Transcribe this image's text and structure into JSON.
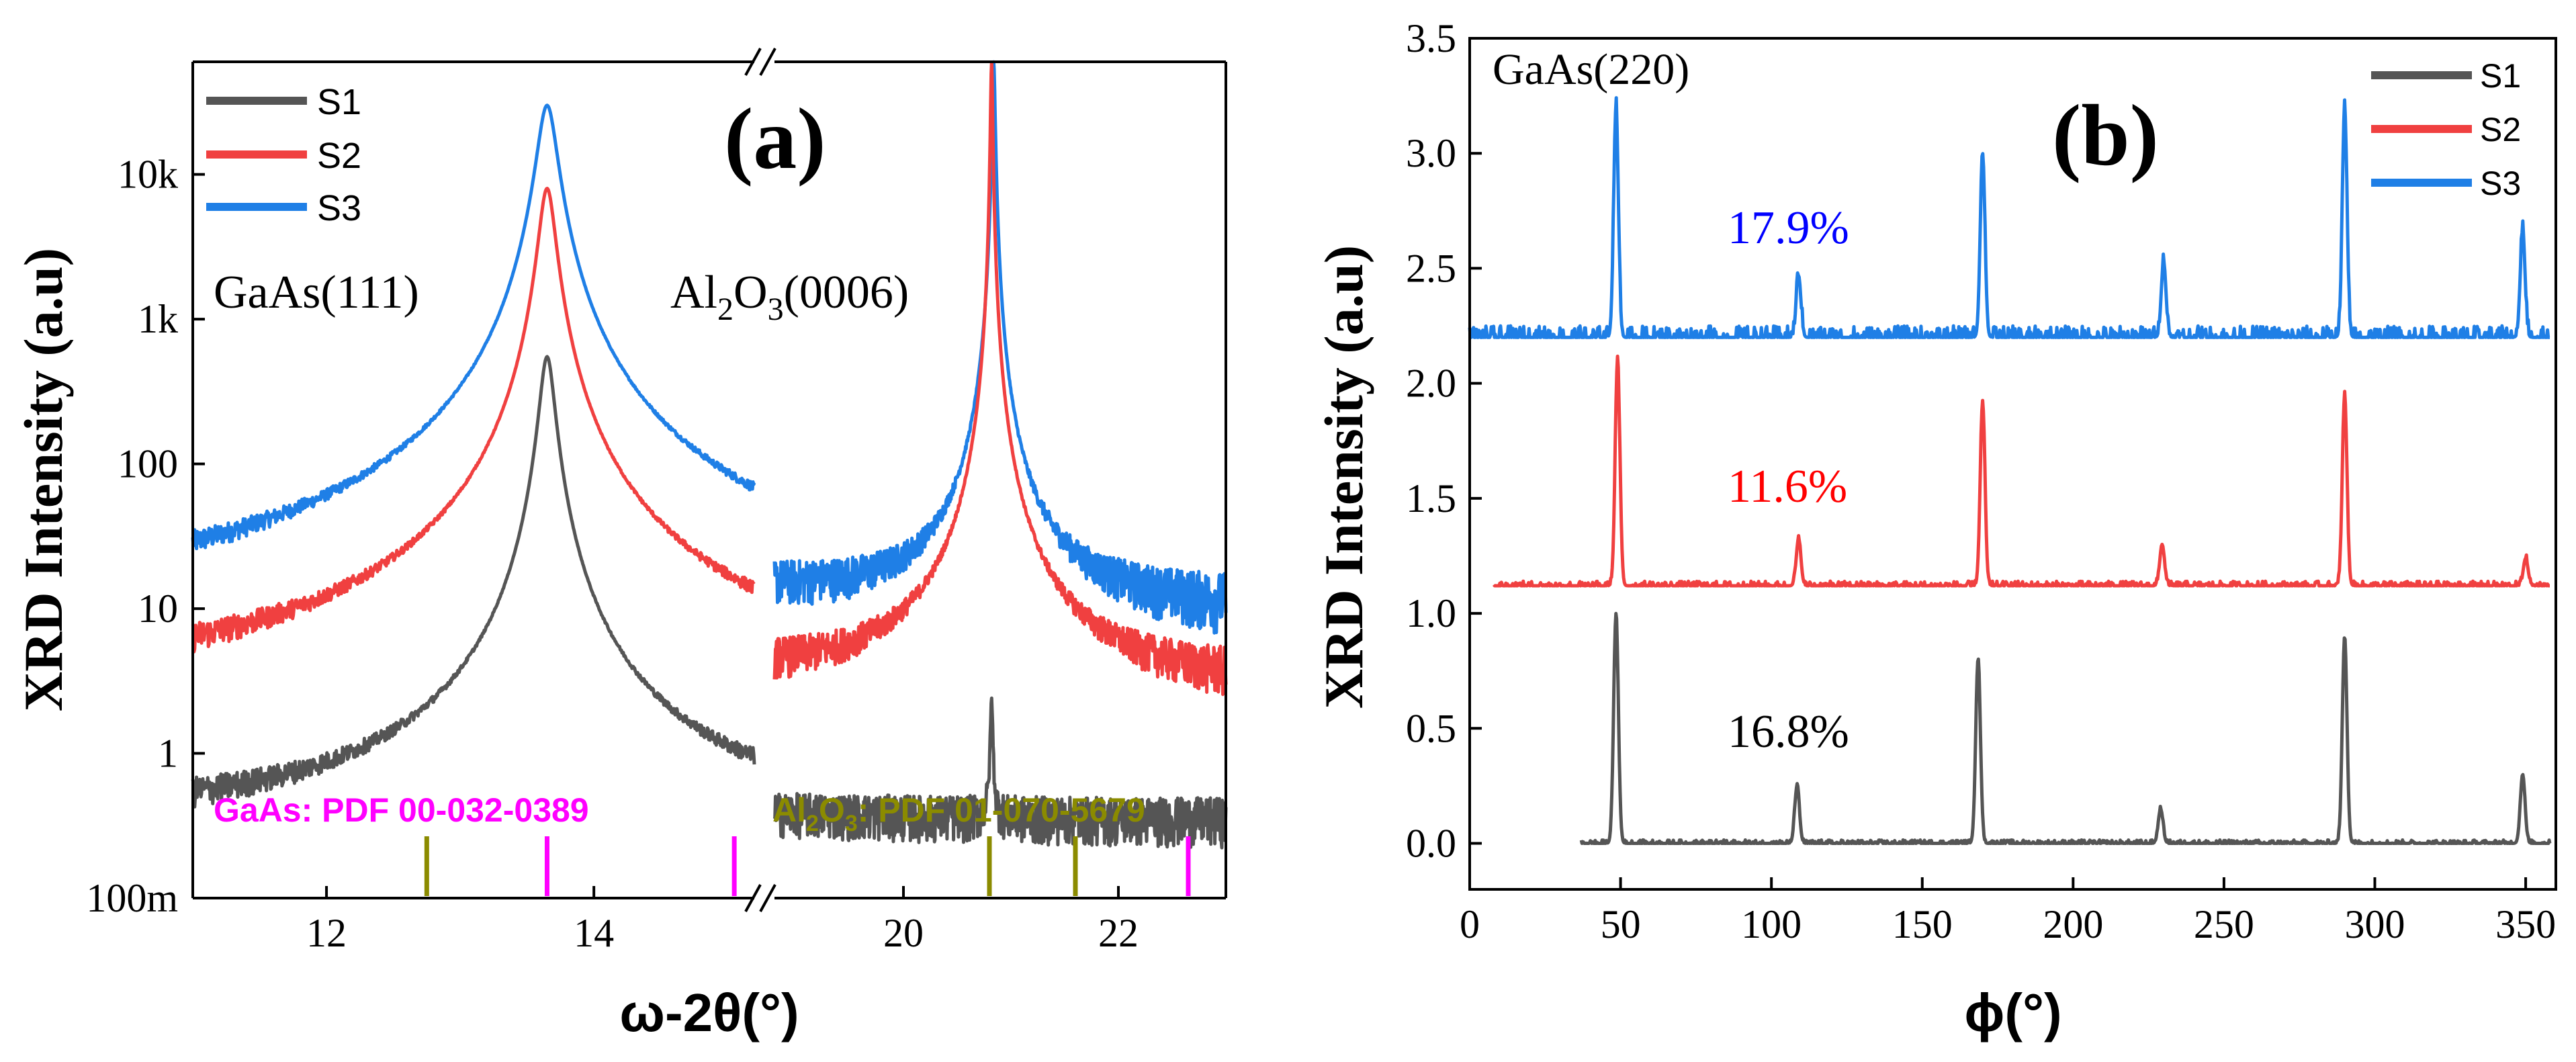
{
  "colors": {
    "S1": "#555555",
    "S2": "#f04040",
    "S3": "#1f7fe6",
    "gaas_ref": "#ff00ff",
    "al2o3_ref": "#8b8b00",
    "label_s1": "#000000",
    "label_s2": "#ff0000",
    "label_s3": "#0000ff"
  },
  "chart_data": [
    {
      "panel": "(a)",
      "type": "line",
      "ylabel": "XRD Intensity (a.u)",
      "xlabel": "ω-2θ(°)",
      "yscale": "log",
      "ylim": [
        0.1,
        60000
      ],
      "ytick_labels": [
        "100m",
        "1",
        "10",
        "100",
        "1k",
        "10k"
      ],
      "ytick_values": [
        0.1,
        1,
        10,
        100,
        1000,
        10000
      ],
      "x_segments": [
        {
          "xlim": [
            11.0,
            15.2
          ],
          "ticks": [
            12,
            14
          ]
        },
        {
          "xlim": [
            18.8,
            23.0
          ],
          "ticks": [
            20,
            22
          ]
        }
      ],
      "axis_break": true,
      "legend": [
        "S1",
        "S2",
        "S3"
      ],
      "legend_position": "top-left",
      "series": [
        {
          "name": "S1",
          "baseline": 0.3,
          "noise": 0.45,
          "peaks": [
            {
              "x": 13.65,
              "y": 550,
              "w": 0.09
            },
            {
              "x": 20.82,
              "y": 2.0,
              "w": 0.02
            }
          ]
        },
        {
          "name": "S2",
          "baseline": 2.2,
          "noise": 0.7,
          "peaks": [
            {
              "x": 13.65,
              "y": 8000,
              "w": 0.1
            },
            {
              "x": 20.82,
              "y": 60000,
              "w": 0.015
            }
          ]
        },
        {
          "name": "S3",
          "baseline": 7.0,
          "noise": 0.8,
          "peaks": [
            {
              "x": 13.65,
              "y": 30000,
              "w": 0.12
            },
            {
              "x": 20.84,
              "y": 60000,
              "w": 0.02
            }
          ]
        }
      ],
      "annotations": {
        "panel_label": "(a)",
        "gaas_peak": "GaAs(111)",
        "al2o3_peak": {
          "pre": "Al",
          "sub1": "2",
          "mid": "O",
          "sub2": "3",
          "post": "(0006)"
        },
        "gaas_pdf": "GaAs: PDF 00-032-0389",
        "al2o3_pdf": {
          "pre": "Al",
          "sub1": "2",
          "mid": "O",
          "sub2": "3",
          "post": ": PDF 01-070-5679"
        }
      },
      "reference_lines": {
        "GaAs": [
          13.65,
          15.05,
          22.65
        ],
        "Al2O3": [
          12.75,
          20.8,
          21.6
        ]
      }
    },
    {
      "panel": "(b)",
      "type": "line",
      "ylabel": "XRD Intensity (a.u)",
      "xlabel": "ϕ(°)",
      "xlim": [
        0,
        360
      ],
      "ylim": [
        -0.2,
        3.5
      ],
      "xticks": [
        0,
        50,
        100,
        150,
        200,
        250,
        300,
        350
      ],
      "yticks": [
        "0.0",
        "0.5",
        "1.0",
        "1.5",
        "2.0",
        "2.5",
        "3.0",
        "3.5"
      ],
      "legend": [
        "S1",
        "S2",
        "S3"
      ],
      "legend_position": "top-right",
      "series": [
        {
          "name": "S1",
          "x_start": 37,
          "baseline": 0.0,
          "noise": 0.015,
          "peaks": [
            {
              "x": 48.5,
              "y": 1.0
            },
            {
              "x": 108.5,
              "y": 0.25
            },
            {
              "x": 168.5,
              "y": 0.8
            },
            {
              "x": 229,
              "y": 0.15
            },
            {
              "x": 290,
              "y": 0.9
            },
            {
              "x": 349,
              "y": 0.3
            }
          ]
        },
        {
          "name": "S2",
          "x_start": 8,
          "baseline": 1.12,
          "noise": 0.02,
          "peaks": [
            {
              "x": 49,
              "y": 0.98
            },
            {
              "x": 109,
              "y": 0.2
            },
            {
              "x": 170,
              "y": 0.8
            },
            {
              "x": 229.5,
              "y": 0.18
            },
            {
              "x": 290,
              "y": 0.83
            },
            {
              "x": 350,
              "y": 0.12
            }
          ]
        },
        {
          "name": "S3",
          "x_start": 0,
          "baseline": 2.2,
          "noise": 0.05,
          "peaks": [
            {
              "x": 48.5,
              "y": 1.0
            },
            {
              "x": 109,
              "y": 0.27
            },
            {
              "x": 170,
              "y": 0.8
            },
            {
              "x": 230,
              "y": 0.33
            },
            {
              "x": 290,
              "y": 1.0
            },
            {
              "x": 349,
              "y": 0.47
            }
          ]
        }
      ],
      "annotations": {
        "panel_label": "(b)",
        "reflection": "GaAs(220)",
        "pct_s3": "17.9%",
        "pct_s2": "11.6%",
        "pct_s1": "16.8%"
      }
    }
  ]
}
